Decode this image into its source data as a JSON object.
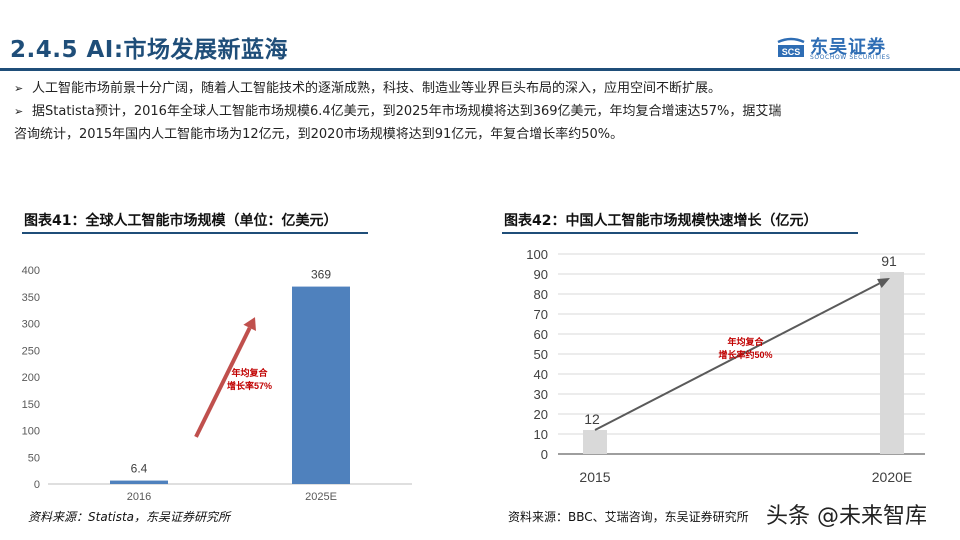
{
  "header": {
    "title": "2.4.5 AI:市场发展新蓝海",
    "logo_cn": "东吴证券",
    "logo_en": "SOOCHOW SECURITIES",
    "logo_mark": "SCS"
  },
  "bullets": [
    "人工智能市场前景十分广阔，随着人工智能技术的逐渐成熟，科技、制造业等业界巨头布局的深入，应用空间不断扩展。",
    "据Statista预计，2016年全球人工智能市场规模6.4亿美元，到2025年市场规模将达到369亿美元，年均复合增速达57%，据艾瑞",
    "咨询统计，2015年国内人工智能市场为12亿元，到2020市场规模将达到91亿元，年复合增长率约50%。"
  ],
  "bullet_marker": "➢",
  "charts": {
    "left_title": "图表41：全球人工智能市场规模（单位：亿美元）",
    "right_title": "图表42：中国人工智能市场规模快速增长（亿元）",
    "left_source": "资料来源：Statista，东吴证券研究所",
    "right_source": "资料来源：BBC、艾瑞咨询，东吴证券研究所"
  },
  "chart_data": [
    {
      "type": "bar",
      "categories": [
        "2016",
        "2025E"
      ],
      "values": [
        6.4,
        369
      ],
      "data_labels": [
        "6.4",
        "369"
      ],
      "ylim": [
        0,
        400
      ],
      "yticks": [
        "0",
        "50",
        "100",
        "150",
        "200",
        "250",
        "300",
        "350",
        "400"
      ],
      "annotation": [
        "年均复合",
        "增长率57%"
      ],
      "bar_color": "#4f81bd",
      "arrow_color": "#c0504d",
      "grid": false
    },
    {
      "type": "bar",
      "categories": [
        "2015",
        "2020E"
      ],
      "values": [
        12,
        91
      ],
      "data_labels": [
        "12",
        "91"
      ],
      "ylim": [
        0,
        100
      ],
      "yticks": [
        "0",
        "10",
        "20",
        "30",
        "40",
        "50",
        "60",
        "70",
        "80",
        "90",
        "100"
      ],
      "annotation": [
        "年均复合",
        "增长率约50%"
      ],
      "bar_color": "#d9d9d9",
      "line_color": "#5a5a5a",
      "grid": true
    }
  ],
  "watermark": "头条 @未来智库"
}
